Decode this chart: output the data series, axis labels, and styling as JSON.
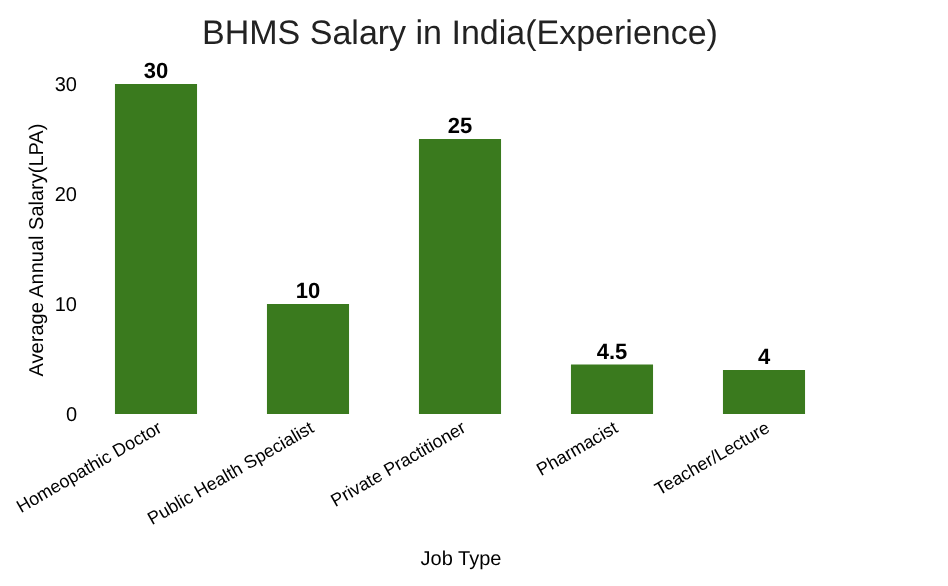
{
  "chart_data": {
    "type": "bar",
    "title": "BHMS Salary in India(Experience)",
    "xlabel": "Job Type",
    "ylabel": "Average Annual Salary(LPA)",
    "categories": [
      "Homeopathic Doctor",
      "Public Health Specialist",
      "Private Practitioner",
      "Pharmacist",
      "Teacher/Lecture"
    ],
    "values": [
      30,
      10,
      25,
      4.5,
      4
    ],
    "color": "#3a7a1e",
    "ylim": [
      0,
      30
    ],
    "yticks": [
      0,
      10,
      20,
      30
    ],
    "data_labels": true,
    "grid": false
  }
}
